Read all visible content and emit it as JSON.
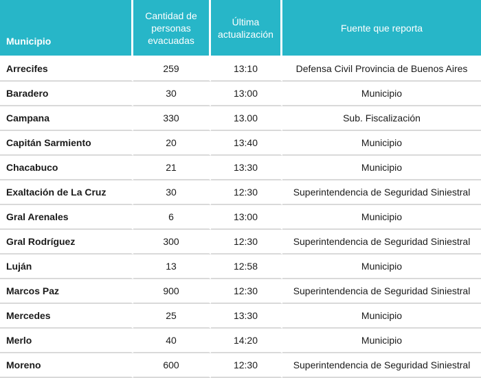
{
  "headers": {
    "municipio": "Municipio",
    "cantidad": "Cantidad de personas evacuadas",
    "actualizacion": "Última actualización",
    "fuente": "Fuente que reporta"
  },
  "rows": [
    {
      "municipio": "Arrecifes",
      "cantidad": "259",
      "hora": "13:10",
      "fuente": "Defensa Civil Provincia de Buenos Aires"
    },
    {
      "municipio": "Baradero",
      "cantidad": "30",
      "hora": "13:00",
      "fuente": "Municipio"
    },
    {
      "municipio": "Campana",
      "cantidad": "330",
      "hora": "13.00",
      "fuente": "Sub. Fiscalización"
    },
    {
      "municipio": "Capitán Sarmiento",
      "cantidad": "20",
      "hora": "13:40",
      "fuente": "Municipio"
    },
    {
      "municipio": "Chacabuco",
      "cantidad": "21",
      "hora": "13:30",
      "fuente": "Municipio"
    },
    {
      "municipio": "Exaltación de La Cruz",
      "cantidad": "30",
      "hora": "12:30",
      "fuente": "Superintendencia de Seguridad Siniestral"
    },
    {
      "municipio": "Gral Arenales",
      "cantidad": "6",
      "hora": "13:00",
      "fuente": "Municipio"
    },
    {
      "municipio": "Gral Rodríguez",
      "cantidad": "300",
      "hora": "12:30",
      "fuente": "Superintendencia de Seguridad Siniestral"
    },
    {
      "municipio": "Luján",
      "cantidad": "13",
      "hora": "12:58",
      "fuente": "Municipio"
    },
    {
      "municipio": "Marcos Paz",
      "cantidad": "900",
      "hora": "12:30",
      "fuente": "Superintendencia de Seguridad Siniestral"
    },
    {
      "municipio": "Mercedes",
      "cantidad": "25",
      "hora": "13:30",
      "fuente": "Municipio"
    },
    {
      "municipio": "Merlo",
      "cantidad": "40",
      "hora": "14:20",
      "fuente": "Municipio"
    },
    {
      "municipio": "Moreno",
      "cantidad": "600",
      "hora": "12:30",
      "fuente": "Superintendencia de Seguridad Siniestral"
    }
  ],
  "colors": {
    "header_bg": "#27b6c8",
    "header_text": "#ffffff",
    "row_divider": "#d9d9d9"
  }
}
